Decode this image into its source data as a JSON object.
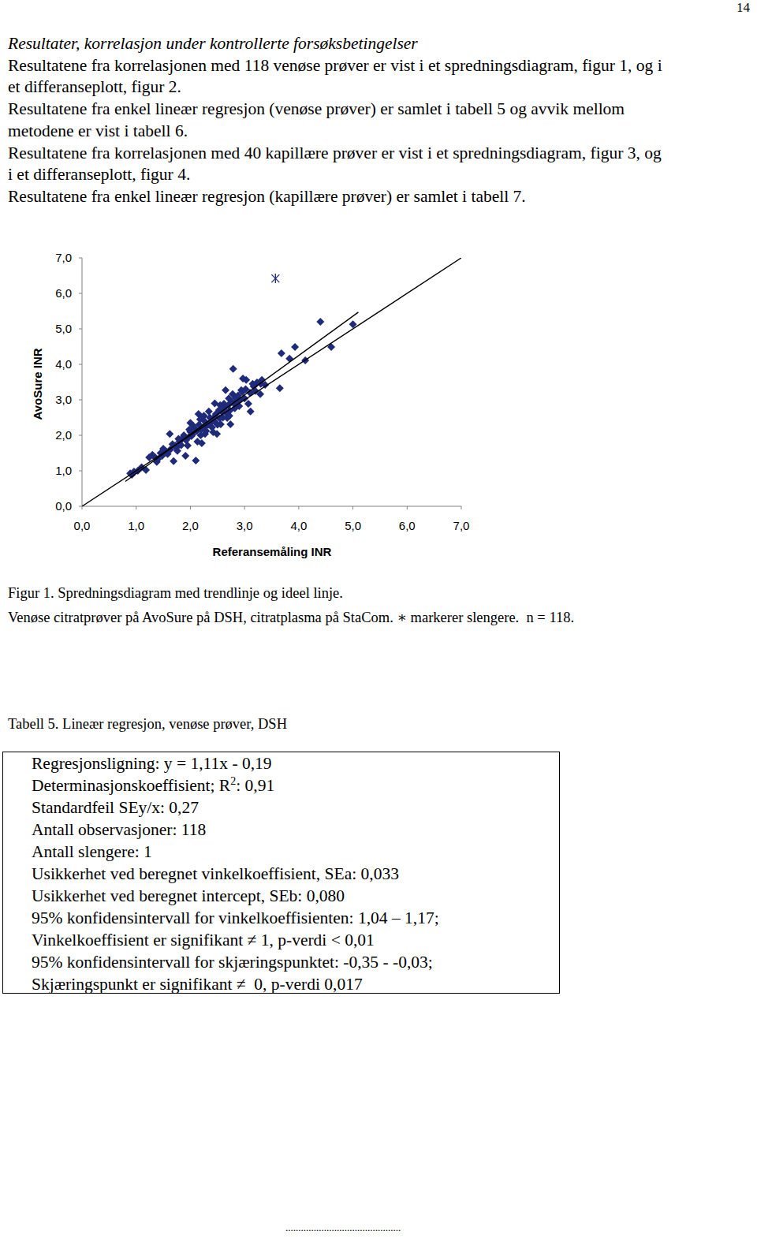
{
  "page_number": "14",
  "heading": "Resultater, korrelasjon under kontrollerte forsøksbetingelser",
  "paragraph_lines": [
    "Resultatene fra korrelasjonen med 118 venøse prøver er vist i et spredningsdiagram, figur 1, og i",
    "et differanseplott, figur 2.",
    "Resultatene fra enkel lineær regresjon (venøse prøver) er samlet i tabell 5 og avvik mellom",
    "metodene er vist i tabell 6.",
    "Resultatene fra korrelasjonen med 40 kapillære prøver er vist i et spredningsdiagram, figur 3, og",
    "i et differanseplott, figur 4.",
    "Resultatene fra enkel lineær regresjon (kapillære prøver) er samlet i tabell 7."
  ],
  "chart_data": {
    "type": "scatter",
    "xlabel": "Referansemåling INR",
    "ylabel": "AvoSure INR",
    "xlim": [
      0,
      7
    ],
    "ylim": [
      0,
      7
    ],
    "xticks": [
      {
        "value": 0,
        "label": "0,0"
      },
      {
        "value": 1,
        "label": "1,0"
      },
      {
        "value": 2,
        "label": "2,0"
      },
      {
        "value": 3,
        "label": "3,0"
      },
      {
        "value": 4,
        "label": "4,0"
      },
      {
        "value": 5,
        "label": "5,0"
      },
      {
        "value": 6,
        "label": "6,0"
      },
      {
        "value": 7,
        "label": "7,0"
      }
    ],
    "yticks": [
      {
        "value": 0,
        "label": "0,0"
      },
      {
        "value": 1,
        "label": "1,0"
      },
      {
        "value": 2,
        "label": "2,0"
      },
      {
        "value": 3,
        "label": "3,0"
      },
      {
        "value": 4,
        "label": "4,0"
      },
      {
        "value": 5,
        "label": "5,0"
      },
      {
        "value": 6,
        "label": "6,0"
      },
      {
        "value": 7,
        "label": "7,0"
      }
    ],
    "grid": false,
    "series": [
      {
        "type": "scatter",
        "marker": "diamond",
        "color": "#1f2a7a",
        "x": [
          0.89,
          0.96,
          0.92,
          1.03,
          1.18,
          1.24,
          1.35,
          1.4,
          1.48,
          1.54,
          1.62,
          1.69,
          1.72,
          1.8,
          1.76,
          1.86,
          1.91,
          1.95,
          1.98,
          2.02,
          2.05,
          2.1,
          2.13,
          2.15,
          2.2,
          2.21,
          2.27,
          2.3,
          2.34,
          2.39,
          2.42,
          2.45,
          2.49,
          2.53,
          2.56,
          2.62,
          2.65,
          2.68,
          2.71,
          2.74,
          2.78,
          2.79,
          2.82,
          2.85,
          2.9,
          2.94,
          2.97,
          3.0,
          3.03,
          3.07,
          3.11,
          3.17,
          3.23,
          3.29,
          3.32,
          3.38,
          3.65,
          3.68,
          3.83,
          3.93,
          4.12,
          4.4,
          4.6,
          5.0,
          1.45,
          1.5,
          1.58,
          1.63,
          1.67,
          1.74,
          1.78,
          1.83,
          1.88,
          1.92,
          1.97,
          2.0,
          2.04,
          2.08,
          2.12,
          2.16,
          2.19,
          2.23,
          2.26,
          2.29,
          2.33,
          2.36,
          2.4,
          2.44,
          2.47,
          2.5,
          2.54,
          2.58,
          2.6,
          2.63,
          2.67,
          2.7,
          2.73,
          2.76,
          2.8,
          2.84,
          2.88,
          2.92,
          2.96,
          3.02,
          3.1,
          3.15,
          3.2,
          3.3,
          1.3,
          1.1,
          1.38,
          2.25,
          2.45,
          2.55,
          2.0,
          2.18,
          2.72
        ],
        "values": [
          0.93,
          0.98,
          0.89,
          1.0,
          1.02,
          1.38,
          1.38,
          1.33,
          1.42,
          1.56,
          2.04,
          1.27,
          1.71,
          1.82,
          1.56,
          1.93,
          1.42,
          1.71,
          2.16,
          1.98,
          2.27,
          1.29,
          1.82,
          2.6,
          2.16,
          1.78,
          2.04,
          2.27,
          2.67,
          2.38,
          2.09,
          2.53,
          2.04,
          2.71,
          2.31,
          2.89,
          3.27,
          2.49,
          3.04,
          2.31,
          3.16,
          3.87,
          2.76,
          2.93,
          2.82,
          3.27,
          3.6,
          3.04,
          3.56,
          2.89,
          2.67,
          3.38,
          3.49,
          3.16,
          3.56,
          3.42,
          3.33,
          4.31,
          4.16,
          4.49,
          4.11,
          5.2,
          4.49,
          5.13,
          1.5,
          1.62,
          1.47,
          1.6,
          1.75,
          1.65,
          1.9,
          1.72,
          2.0,
          1.86,
          1.95,
          2.1,
          2.02,
          2.2,
          2.12,
          2.3,
          2.0,
          2.22,
          2.4,
          2.12,
          2.3,
          2.5,
          2.22,
          2.4,
          2.6,
          2.3,
          2.48,
          2.66,
          2.5,
          2.78,
          2.62,
          2.85,
          2.7,
          2.95,
          2.9,
          3.05,
          3.12,
          3.0,
          3.22,
          3.3,
          3.2,
          3.45,
          3.25,
          3.45,
          1.45,
          1.1,
          1.25,
          2.55,
          2.9,
          2.85,
          2.35,
          2.45,
          2.55
        ]
      },
      {
        "type": "scatter",
        "marker": "asterisk",
        "color": "#1f2a7a",
        "x": [
          3.57
        ],
        "values": [
          6.42
        ]
      },
      {
        "type": "line",
        "line_style": "solid",
        "color": "#000000",
        "x": [
          0.8,
          5.1
        ],
        "values": [
          0.7,
          5.47
        ]
      },
      {
        "type": "line",
        "line_style": "solid",
        "color": "#000000",
        "x": [
          0,
          7
        ],
        "values": [
          0,
          7
        ]
      }
    ]
  },
  "figure_caption": [
    "Figur 1. Spredningsdiagram med trendlinje og ideel linje.",
    "Venøse citratprøver på AvoSure på DSH, citratplasma på StaCom. ∗ markerer slengere.  n = 118."
  ],
  "table": {
    "caption": "Tabell 5. Lineær regresjon, venøse prøver, DSH",
    "rows": [
      "Regresjonsligning: y = 1,11x - 0,19",
      {
        "text": "Determinasjonskoeffisient; R",
        "sup": "2",
        "rest": ": 0,91"
      },
      "Standardfeil SEy/x: 0,27",
      "Antall observasjoner: 118",
      "Antall slengere: 1",
      "Usikkerhet ved beregnet vinkelkoeffisient, SEa: 0,033",
      "Usikkerhet ved beregnet intercept, SEb: 0,080",
      "95% konfidensintervall for vinkelkoeffisienten: 1,04 – 1,17;",
      "Vinkelkoeffisient er signifikant ≠ 1, p-verdi < 0,01",
      "95% konfidensintervall for skjæringspunktet: -0,35 - -0,03;",
      "Skjæringspunkt er signifikant ≠  0, p-verdi 0,017"
    ]
  },
  "footer": "............................................."
}
